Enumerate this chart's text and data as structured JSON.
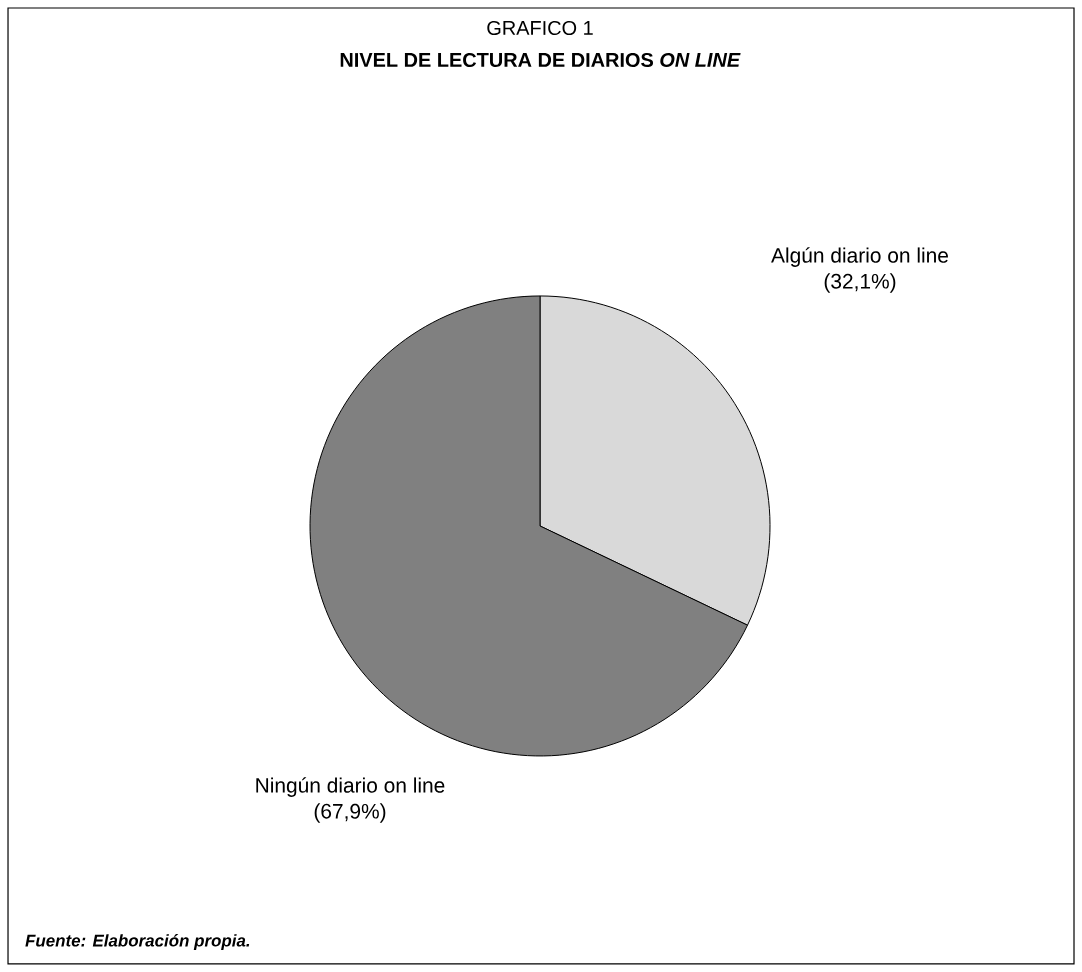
{
  "chart_data": {
    "type": "pie",
    "title": "GRAFICO 1",
    "subtitle": "NIVEL DE LECTURA DE DIARIOS *ON LINE*",
    "categories": [
      "Algún diario on line",
      "Ningún diario on line"
    ],
    "values": [
      32.1,
      67.9
    ],
    "colors": [
      "#d9d9d9",
      "#808080"
    ],
    "value_labels": [
      "(32,1%)",
      "(67,9%)"
    ],
    "annotations": [
      "Fuente: Elaboración propia."
    ]
  }
}
